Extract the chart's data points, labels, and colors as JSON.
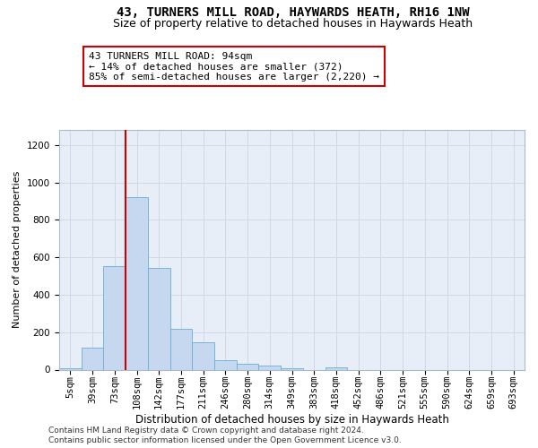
{
  "title": "43, TURNERS MILL ROAD, HAYWARDS HEATH, RH16 1NW",
  "subtitle": "Size of property relative to detached houses in Haywards Heath",
  "xlabel": "Distribution of detached houses by size in Haywards Heath",
  "ylabel": "Number of detached properties",
  "categories": [
    "5sqm",
    "39sqm",
    "73sqm",
    "108sqm",
    "142sqm",
    "177sqm",
    "211sqm",
    "246sqm",
    "280sqm",
    "314sqm",
    "349sqm",
    "383sqm",
    "418sqm",
    "452sqm",
    "486sqm",
    "521sqm",
    "555sqm",
    "590sqm",
    "624sqm",
    "659sqm",
    "693sqm"
  ],
  "values": [
    8,
    115,
    555,
    920,
    545,
    220,
    145,
    52,
    32,
    22,
    5,
    0,
    10,
    0,
    0,
    0,
    0,
    0,
    0,
    0,
    0
  ],
  "bar_color": "#c5d8f0",
  "bar_edge_color": "#6aaed6",
  "vline_color": "#cc0000",
  "vline_x": 2.5,
  "annotation_text": "43 TURNERS MILL ROAD: 94sqm\n← 14% of detached houses are smaller (372)\n85% of semi-detached houses are larger (2,220) →",
  "annotation_box_facecolor": "#ffffff",
  "annotation_box_edgecolor": "#cc0000",
  "ylim": [
    0,
    1280
  ],
  "yticks": [
    0,
    200,
    400,
    600,
    800,
    1000,
    1200
  ],
  "grid_color": "#d0d8e8",
  "bg_color": "#e8eef8",
  "footer_line1": "Contains HM Land Registry data © Crown copyright and database right 2024.",
  "footer_line2": "Contains public sector information licensed under the Open Government Licence v3.0.",
  "title_fontsize": 10,
  "subtitle_fontsize": 9,
  "xlabel_fontsize": 8.5,
  "ylabel_fontsize": 8,
  "tick_fontsize": 7.5,
  "annotation_fontsize": 8,
  "footer_fontsize": 6.5
}
